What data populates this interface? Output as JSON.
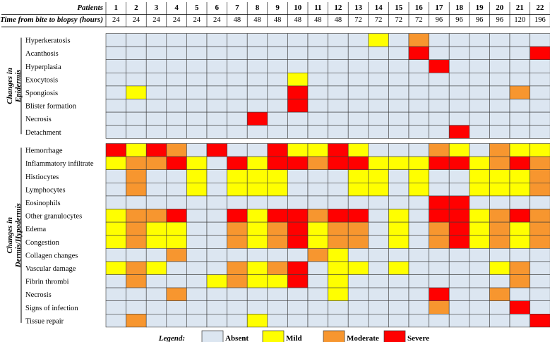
{
  "chart_data": {
    "type": "heatmap",
    "header_patients_label": "Patients",
    "header_time_label": "Time from bite to biopsy (hours)",
    "patients": [
      "1",
      "2",
      "3",
      "4",
      "5",
      "6",
      "7",
      "8",
      "9",
      "10",
      "11",
      "12",
      "13",
      "14",
      "15",
      "16",
      "17",
      "18",
      "19",
      "20",
      "21",
      "22"
    ],
    "times": [
      "24",
      "24",
      "24",
      "24",
      "24",
      "24",
      "48",
      "48",
      "48",
      "48",
      "48",
      "48",
      "72",
      "72",
      "72",
      "72",
      "96",
      "96",
      "96",
      "96",
      "120",
      "196"
    ],
    "groups": [
      {
        "label": [
          "Changes in",
          "Epidermis"
        ],
        "rows": [
          {
            "label": "Hyperkeratosis",
            "values": [
              0,
              0,
              0,
              0,
              0,
              0,
              0,
              0,
              0,
              0,
              0,
              0,
              0,
              1,
              0,
              2,
              0,
              0,
              0,
              0,
              0,
              0
            ]
          },
          {
            "label": "Acanthosis",
            "values": [
              0,
              0,
              0,
              0,
              0,
              0,
              0,
              0,
              0,
              0,
              0,
              0,
              0,
              0,
              0,
              3,
              0,
              0,
              0,
              0,
              0,
              3
            ]
          },
          {
            "label": "Hyperplasia",
            "values": [
              0,
              0,
              0,
              0,
              0,
              0,
              0,
              0,
              0,
              0,
              0,
              0,
              0,
              0,
              0,
              0,
              3,
              0,
              0,
              0,
              0,
              0
            ]
          },
          {
            "label": "Exocytosis",
            "values": [
              0,
              0,
              0,
              0,
              0,
              0,
              0,
              0,
              0,
              1,
              0,
              0,
              0,
              0,
              0,
              0,
              0,
              0,
              0,
              0,
              0,
              0
            ]
          },
          {
            "label": "Spongiosis",
            "values": [
              0,
              1,
              0,
              0,
              0,
              0,
              0,
              0,
              0,
              3,
              0,
              0,
              0,
              0,
              0,
              0,
              0,
              0,
              0,
              0,
              2,
              0
            ]
          },
          {
            "label": "Blister formation",
            "values": [
              0,
              0,
              0,
              0,
              0,
              0,
              0,
              0,
              0,
              3,
              0,
              0,
              0,
              0,
              0,
              0,
              0,
              0,
              0,
              0,
              0,
              0
            ]
          },
          {
            "label": "Necrosis",
            "values": [
              0,
              0,
              0,
              0,
              0,
              0,
              0,
              3,
              0,
              0,
              0,
              0,
              0,
              0,
              0,
              0,
              0,
              0,
              0,
              0,
              0,
              0
            ]
          },
          {
            "label": "Detachment",
            "values": [
              0,
              0,
              0,
              0,
              0,
              0,
              0,
              0,
              0,
              0,
              0,
              0,
              0,
              0,
              0,
              0,
              0,
              3,
              0,
              0,
              0,
              0
            ]
          }
        ]
      },
      {
        "label": [
          "Changes in",
          "Dermis/Hypodermis"
        ],
        "rows": [
          {
            "label": "Hemorrhage",
            "values": [
              3,
              1,
              3,
              2,
              0,
              3,
              0,
              0,
              3,
              1,
              1,
              3,
              1,
              0,
              0,
              0,
              2,
              1,
              0,
              2,
              1,
              1
            ]
          },
          {
            "label": "Inflammatory  infiltrate",
            "values": [
              1,
              2,
              2,
              3,
              1,
              0,
              3,
              1,
              3,
              3,
              2,
              3,
              3,
              1,
              1,
              1,
              3,
              3,
              1,
              2,
              3,
              2
            ]
          },
          {
            "label": "Histiocytes",
            "values": [
              0,
              2,
              0,
              0,
              1,
              0,
              1,
              1,
              1,
              0,
              0,
              0,
              1,
              1,
              0,
              1,
              0,
              0,
              1,
              1,
              1,
              2
            ]
          },
          {
            "label": "Lymphocytes",
            "values": [
              0,
              2,
              0,
              0,
              1,
              0,
              1,
              1,
              1,
              0,
              0,
              0,
              1,
              1,
              0,
              1,
              0,
              0,
              1,
              1,
              1,
              2
            ]
          },
          {
            "label": "Eosinophils",
            "values": [
              0,
              0,
              0,
              0,
              0,
              0,
              0,
              0,
              0,
              0,
              0,
              0,
              0,
              0,
              0,
              0,
              3,
              3,
              0,
              0,
              0,
              0
            ]
          },
          {
            "label": "Other granulocytes",
            "values": [
              1,
              2,
              2,
              3,
              0,
              0,
              3,
              1,
              3,
              3,
              2,
              3,
              3,
              0,
              1,
              0,
              3,
              3,
              1,
              2,
              3,
              2
            ]
          },
          {
            "label": "Edema",
            "values": [
              1,
              2,
              1,
              1,
              0,
              0,
              2,
              1,
              2,
              3,
              1,
              2,
              2,
              0,
              1,
              0,
              2,
              3,
              1,
              2,
              1,
              2
            ]
          },
          {
            "label": "Congestion",
            "values": [
              1,
              2,
              1,
              1,
              0,
              0,
              2,
              1,
              2,
              3,
              1,
              2,
              2,
              0,
              1,
              0,
              2,
              3,
              1,
              2,
              1,
              2
            ]
          },
          {
            "label": "Collagen changes",
            "values": [
              0,
              0,
              0,
              2,
              0,
              0,
              0,
              0,
              0,
              0,
              2,
              1,
              0,
              0,
              0,
              0,
              0,
              0,
              0,
              0,
              0,
              0
            ]
          },
          {
            "label": "Vascular damage",
            "values": [
              1,
              2,
              1,
              0,
              0,
              0,
              2,
              1,
              2,
              3,
              0,
              1,
              1,
              0,
              1,
              0,
              0,
              0,
              0,
              1,
              2,
              0
            ]
          },
          {
            "label": "Fibrin thrombi",
            "values": [
              0,
              2,
              0,
              0,
              0,
              1,
              2,
              1,
              1,
              3,
              0,
              1,
              0,
              0,
              0,
              0,
              0,
              0,
              0,
              0,
              2,
              0
            ]
          },
          {
            "label": "Necrosis",
            "values": [
              0,
              0,
              0,
              2,
              0,
              0,
              0,
              0,
              0,
              0,
              0,
              1,
              0,
              0,
              0,
              0,
              3,
              0,
              0,
              2,
              0,
              0
            ]
          },
          {
            "label": "Signs of infection",
            "values": [
              0,
              0,
              0,
              0,
              0,
              0,
              0,
              0,
              0,
              0,
              0,
              0,
              0,
              0,
              0,
              0,
              2,
              0,
              0,
              0,
              3,
              0
            ]
          },
          {
            "label": "Tissue repair",
            "values": [
              0,
              2,
              0,
              0,
              0,
              0,
              0,
              1,
              0,
              0,
              0,
              0,
              0,
              0,
              0,
              0,
              0,
              0,
              0,
              0,
              0,
              3
            ]
          }
        ]
      }
    ],
    "legend_title": "Legend",
    "legend": [
      {
        "label": "Absent",
        "color": "#dce6f1"
      },
      {
        "label": "Mild",
        "color": "#ffff00"
      },
      {
        "label": "Moderate",
        "color": "#f7962f"
      },
      {
        "label": "Severe",
        "color": "#ff0000"
      }
    ]
  }
}
